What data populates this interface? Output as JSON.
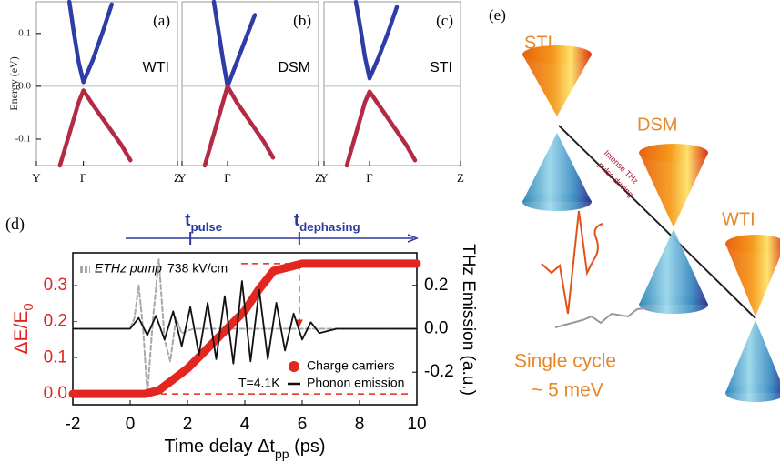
{
  "chart_data": [
    {
      "type": "line",
      "label": "(a)",
      "annotation": "WTI",
      "ylabel": "Energy (eV)",
      "x": [
        -0.5,
        -0.4,
        -0.3,
        -0.2,
        -0.1,
        0,
        0.2,
        0.4,
        0.6,
        0.8,
        1.0
      ],
      "series": [
        {
          "color": "#2e3ca6",
          "values": [
            null,
            null,
            0.16,
            0.1,
            0.045,
            0.008,
            0.05,
            0.1,
            0.155,
            null,
            null
          ]
        },
        {
          "color": "#b42a45",
          "values": [
            -0.15,
            -0.12,
            -0.09,
            -0.06,
            -0.03,
            -0.008,
            -0.035,
            -0.06,
            -0.085,
            -0.11,
            -0.14
          ]
        }
      ],
      "xlim": [
        -1,
        2
      ],
      "xticks": [
        {
          "value": -1,
          "label": "Y"
        },
        {
          "value": 0,
          "label": "Γ"
        },
        {
          "value": 2,
          "label": "Z"
        }
      ],
      "ylim": [
        -0.15,
        0.16
      ],
      "yticks": [
        -0.1,
        {
          "value": 0,
          "label": "0.0"
        },
        0.1
      ],
      "zero_line": true
    },
    {
      "type": "line",
      "label": "(b)",
      "annotation": "DSM",
      "x": [
        -0.5,
        -0.4,
        -0.3,
        -0.2,
        -0.1,
        0,
        0.2,
        0.4,
        0.6,
        0.8,
        1.0
      ],
      "series": [
        {
          "color": "#2e3ca6",
          "values": [
            null,
            null,
            0.16,
            0.105,
            0.05,
            0,
            0.045,
            0.09,
            0.135,
            null,
            null
          ]
        },
        {
          "color": "#b42a45",
          "values": [
            -0.15,
            -0.12,
            -0.09,
            -0.06,
            -0.03,
            0,
            -0.03,
            -0.055,
            -0.08,
            -0.105,
            -0.135
          ]
        }
      ],
      "xlim": [
        -1,
        2
      ],
      "xticks": [
        {
          "value": -1,
          "label": "Y"
        },
        {
          "value": 0,
          "label": "Γ"
        },
        {
          "value": 2,
          "label": "Z"
        }
      ],
      "ylim": [
        -0.15,
        0.16
      ],
      "zero_line": true
    },
    {
      "type": "line",
      "label": "(c)",
      "annotation": "STI",
      "x": [
        -0.5,
        -0.4,
        -0.3,
        -0.2,
        -0.1,
        0,
        0.2,
        0.4,
        0.6,
        0.8,
        1.0
      ],
      "series": [
        {
          "color": "#2e3ca6",
          "values": [
            null,
            null,
            0.16,
            0.11,
            0.055,
            0.015,
            0.055,
            0.1,
            0.15,
            null,
            null
          ]
        },
        {
          "color": "#b42a45",
          "values": [
            -0.15,
            -0.12,
            -0.09,
            -0.06,
            -0.03,
            -0.01,
            -0.035,
            -0.06,
            -0.085,
            -0.11,
            -0.14
          ]
        }
      ],
      "xlim": [
        -1,
        2
      ],
      "xticks": [
        {
          "value": -1,
          "label": "Y"
        },
        {
          "value": 0,
          "label": "Γ"
        },
        {
          "value": 2,
          "label": "Z"
        }
      ],
      "ylim": [
        -0.15,
        0.16
      ],
      "zero_line": true
    },
    {
      "type": "line",
      "label": "(d)",
      "xlabel": {
        "text": "Time delay Δt",
        "sub": "pp",
        "tail": " (ps)"
      },
      "ylabel": {
        "text": "ΔE/E",
        "sub": "0"
      },
      "y2label": "THz Emission (a.u.)",
      "ycolor": "#e3261f",
      "xlim": [
        -2,
        10
      ],
      "xticks": [
        -2,
        0,
        2,
        4,
        6,
        8,
        10
      ],
      "ylim": [
        -0.03,
        0.39
      ],
      "yticks": [
        {
          "value": 0,
          "label": "0.0"
        },
        0.1,
        0.2,
        0.3
      ],
      "y2lim": [
        -0.35,
        0.35
      ],
      "y2ticks": [
        -0.2,
        {
          "value": 0,
          "label": "0.0"
        },
        0.2
      ],
      "series": [
        {
          "name": "ETHz pump",
          "color": "#a8a8a8",
          "style": "dashed",
          "axis": "y2",
          "x": [
            -2,
            0,
            0.15,
            0.3,
            0.45,
            0.6,
            0.8,
            1.0,
            1.2,
            1.4,
            1.6,
            1.8,
            2.2,
            10
          ],
          "values": [
            0,
            0,
            0.05,
            0.2,
            0.0,
            -0.3,
            0.05,
            0.32,
            -0.05,
            -0.15,
            0.05,
            -0.02,
            0,
            0
          ]
        },
        {
          "name": "Charge carriers",
          "color": "#e3261f",
          "style": "band",
          "x": [
            -2,
            -1.5,
            -1,
            -0.5,
            0,
            0.5,
            1,
            1.5,
            2,
            2.5,
            3,
            3.5,
            4,
            4.5,
            5,
            5.5,
            6,
            6.5,
            7,
            7.5,
            8,
            8.5,
            9,
            9.5,
            10
          ],
          "values": [
            0,
            0,
            0,
            0,
            0,
            0,
            0.01,
            0.04,
            0.07,
            0.11,
            0.15,
            0.19,
            0.23,
            0.29,
            0.34,
            0.35,
            0.36,
            0.36,
            0.36,
            0.36,
            0.36,
            0.36,
            0.36,
            0.36,
            0.36
          ]
        },
        {
          "name": "Phonon emission",
          "color": "#111111",
          "style": "line",
          "axis": "y2",
          "x": [
            -2,
            0,
            0.3,
            0.6,
            0.9,
            1.2,
            1.5,
            1.8,
            2.1,
            2.4,
            2.7,
            3,
            3.3,
            3.6,
            3.9,
            4.2,
            4.5,
            4.8,
            5.1,
            5.4,
            5.7,
            6,
            6.3,
            6.6,
            7.2,
            10
          ],
          "values": [
            0,
            0,
            0.05,
            -0.03,
            0.06,
            -0.05,
            0.08,
            -0.08,
            0.1,
            -0.12,
            0.12,
            -0.14,
            0.15,
            -0.16,
            0.22,
            -0.15,
            0.18,
            -0.14,
            0.12,
            -0.1,
            0.07,
            -0.05,
            0.03,
            -0.02,
            0,
            0
          ]
        }
      ],
      "events": [
        {
          "text": "t",
          "sub": "pulse",
          "x": 2.1
        },
        {
          "text": "t",
          "sub": "dephasing",
          "x": 5.9
        }
      ],
      "events_color": "#2b3a9c",
      "guides": {
        "color": "#e3261f",
        "levels": [
          0,
          0.36
        ]
      },
      "field_label": "738 kV/cm",
      "temperature_label": "T=4.1K"
    }
  ],
  "diagram": {
    "label": "(e)",
    "phases": [
      "STI",
      "DSM",
      "WTI"
    ],
    "arrow_label": [
      "Intense THz",
      "pulse driving"
    ],
    "pulse_label": [
      "Single cycle",
      "~ 5 meV"
    ]
  }
}
